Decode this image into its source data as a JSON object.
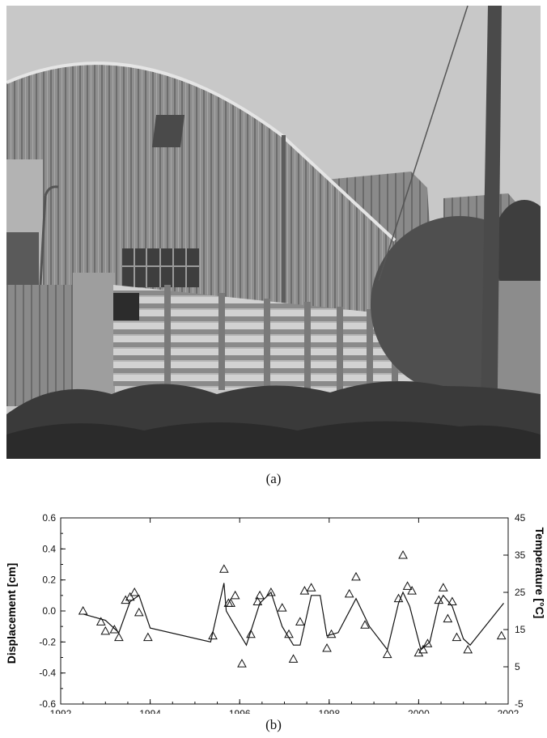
{
  "captions": {
    "a": "(a)",
    "b": "(b)"
  },
  "chart_data": {
    "type": "scatter",
    "ylabel": "Displacement [cm]",
    "y2label": "Temperature [°C]",
    "xlim": [
      1992,
      2002
    ],
    "ylim": [
      -0.6,
      0.6
    ],
    "y2lim": [
      -5,
      45
    ],
    "xticks": [
      1992,
      1994,
      1996,
      1998,
      2000,
      2002
    ],
    "yticks": [
      "0.6",
      "0.4",
      "0.2",
      "0.0",
      "-0.2",
      "-0.4",
      "-0.6"
    ],
    "y2ticks": [
      "45",
      "35",
      "25",
      "15",
      "5",
      "-5"
    ],
    "grid": false,
    "series": [
      {
        "kind": "markers-triangle",
        "x": [
          1992.5,
          1992.9,
          1993.0,
          1993.2,
          1993.3,
          1993.45,
          1993.55,
          1993.65,
          1993.75,
          1993.95,
          1995.4,
          1995.65,
          1995.75,
          1995.8,
          1995.9,
          1996.05,
          1996.25,
          1996.4,
          1996.45,
          1996.7,
          1996.95,
          1997.1,
          1997.2,
          1997.35,
          1997.45,
          1997.6,
          1997.95,
          1998.05,
          1998.45,
          1998.6,
          1998.8,
          1999.3,
          1999.55,
          1999.65,
          1999.75,
          1999.85,
          2000.0,
          2000.1,
          2000.2,
          2000.45,
          2000.55,
          2000.65,
          2000.75,
          2000.85,
          2001.1,
          2001.85
        ],
        "y": [
          0.0,
          -0.07,
          -0.13,
          -0.12,
          -0.17,
          0.07,
          0.09,
          0.12,
          -0.01,
          -0.17,
          -0.16,
          0.27,
          0.05,
          0.05,
          0.1,
          -0.34,
          -0.15,
          0.06,
          0.1,
          0.12,
          0.02,
          -0.15,
          -0.31,
          -0.07,
          0.13,
          0.15,
          -0.24,
          -0.15,
          0.11,
          0.22,
          -0.09,
          -0.28,
          0.08,
          0.36,
          0.16,
          0.13,
          -0.27,
          -0.25,
          -0.21,
          0.07,
          0.15,
          -0.05,
          0.06,
          -0.17,
          -0.25,
          -0.16
        ]
      },
      {
        "kind": "line",
        "x": [
          1992.5,
          1993.0,
          1993.3,
          1993.55,
          1993.75,
          1994.0,
          1995.35,
          1995.65,
          1995.7,
          1995.9,
          1996.15,
          1996.45,
          1996.7,
          1996.95,
          1997.2,
          1997.35,
          1997.6,
          1997.8,
          1997.95,
          1998.2,
          1998.6,
          1998.9,
          1999.3,
          1999.55,
          1999.65,
          1999.8,
          2000.05,
          2000.25,
          2000.45,
          2000.55,
          2000.75,
          2001.0,
          2001.15,
          2001.9
        ],
        "y": [
          -0.02,
          -0.06,
          -0.14,
          0.06,
          0.1,
          -0.11,
          -0.2,
          0.18,
          0.0,
          -0.1,
          -0.22,
          0.05,
          0.12,
          -0.1,
          -0.22,
          -0.22,
          0.1,
          0.1,
          -0.16,
          -0.14,
          0.08,
          -0.1,
          -0.25,
          0.05,
          0.12,
          0.03,
          -0.25,
          -0.2,
          0.05,
          0.1,
          0.03,
          -0.18,
          -0.22,
          0.05
        ]
      }
    ]
  }
}
